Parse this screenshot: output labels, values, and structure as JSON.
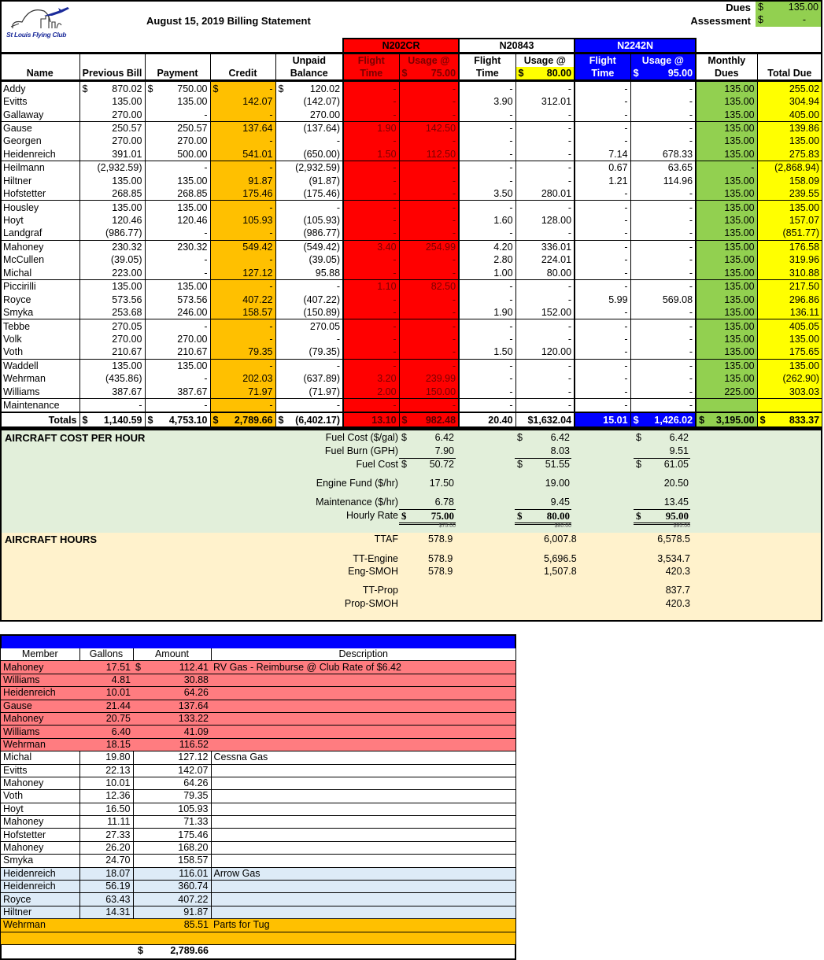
{
  "header": {
    "logo_text": "St Louis Flying Club",
    "title": "August 15, 2019 Billing Statement",
    "dues_label": "Dues",
    "dues_value": "135.00",
    "assessment_label": "Assessment",
    "assessment_value": "-",
    "currency": "$"
  },
  "aircraft": [
    {
      "tail": "N202CR",
      "flight_label": "Flight Time",
      "usage_label": "Usage @",
      "rate": "75.00",
      "color": "#ff0000"
    },
    {
      "tail": "N20843",
      "flight_label": "Flight Time",
      "usage_label": "Usage @",
      "rate": "80.00",
      "color": "#ffffff"
    },
    {
      "tail": "N2242N",
      "flight_label": "Flight Time",
      "usage_label": "Usage @",
      "rate": "95.00",
      "color": "#0000ff"
    }
  ],
  "columns": {
    "name": "Name",
    "previous_bill": "Previous Bill",
    "payment": "Payment",
    "credit": "Credit",
    "unpaid_balance": "Unpaid Balance",
    "monthly_dues": "Monthly Dues",
    "total_due": "Total Due"
  },
  "rows": [
    [
      "Addy",
      "$ 870.02",
      "$ 750.00",
      "$ -",
      "$ 120.02",
      "-",
      "-",
      "-",
      "-",
      "-",
      "-",
      "135.00",
      "255.02"
    ],
    [
      "Evitts",
      "135.00",
      "135.00",
      "142.07",
      "(142.07)",
      "-",
      "-",
      "3.90",
      "312.01",
      "-",
      "-",
      "135.00",
      "304.94"
    ],
    [
      "Gallaway",
      "270.00",
      "-",
      "-",
      "270.00",
      "-",
      "-",
      "-",
      "-",
      "-",
      "-",
      "135.00",
      "405.00"
    ],
    [
      "Gause",
      "250.57",
      "250.57",
      "137.64",
      "(137.64)",
      "1.90",
      "142.50",
      "-",
      "-",
      "-",
      "-",
      "135.00",
      "139.86"
    ],
    [
      "Georgen",
      "270.00",
      "270.00",
      "-",
      "-",
      "-",
      "-",
      "-",
      "-",
      "-",
      "-",
      "135.00",
      "135.00"
    ],
    [
      "Heidenreich",
      "391.01",
      "500.00",
      "541.01",
      "(650.00)",
      "1.50",
      "112.50",
      "-",
      "-",
      "7.14",
      "678.33",
      "135.00",
      "275.83"
    ],
    [
      "Heilmann",
      "(2,932.59)",
      "-",
      "-",
      "(2,932.59)",
      "-",
      "-",
      "-",
      "-",
      "0.67",
      "63.65",
      "-",
      "(2,868.94)"
    ],
    [
      "Hiltner",
      "135.00",
      "135.00",
      "91.87",
      "(91.87)",
      "-",
      "-",
      "-",
      "-",
      "1.21",
      "114.96",
      "135.00",
      "158.09"
    ],
    [
      "Hofstetter",
      "268.85",
      "268.85",
      "175.46",
      "(175.46)",
      "-",
      "-",
      "3.50",
      "280.01",
      "-",
      "-",
      "135.00",
      "239.55"
    ],
    [
      "Housley",
      "135.00",
      "135.00",
      "-",
      "-",
      "-",
      "-",
      "-",
      "-",
      "-",
      "-",
      "135.00",
      "135.00"
    ],
    [
      "Hoyt",
      "120.46",
      "120.46",
      "105.93",
      "(105.93)",
      "-",
      "-",
      "1.60",
      "128.00",
      "-",
      "-",
      "135.00",
      "157.07"
    ],
    [
      "Landgraf",
      "(986.77)",
      "-",
      "-",
      "(986.77)",
      "-",
      "-",
      "-",
      "-",
      "-",
      "-",
      "135.00",
      "(851.77)"
    ],
    [
      "Mahoney",
      "230.32",
      "230.32",
      "549.42",
      "(549.42)",
      "3.40",
      "254.99",
      "4.20",
      "336.01",
      "-",
      "-",
      "135.00",
      "176.58"
    ],
    [
      "McCullen",
      "(39.05)",
      "-",
      "-",
      "(39.05)",
      "-",
      "-",
      "2.80",
      "224.01",
      "-",
      "-",
      "135.00",
      "319.96"
    ],
    [
      "Michal",
      "223.00",
      "-",
      "127.12",
      "95.88",
      "-",
      "-",
      "1.00",
      "80.00",
      "-",
      "-",
      "135.00",
      "310.88"
    ],
    [
      "Piccirilli",
      "135.00",
      "135.00",
      "-",
      "-",
      "1.10",
      "82.50",
      "-",
      "-",
      "-",
      "-",
      "135.00",
      "217.50"
    ],
    [
      "Royce",
      "573.56",
      "573.56",
      "407.22",
      "(407.22)",
      "-",
      "-",
      "-",
      "-",
      "5.99",
      "569.08",
      "135.00",
      "296.86"
    ],
    [
      "Smyka",
      "253.68",
      "246.00",
      "158.57",
      "(150.89)",
      "-",
      "-",
      "1.90",
      "152.00",
      "-",
      "-",
      "135.00",
      "136.11"
    ],
    [
      "Tebbe",
      "270.05",
      "-",
      "-",
      "270.05",
      "-",
      "-",
      "-",
      "-",
      "-",
      "-",
      "135.00",
      "405.05"
    ],
    [
      "Volk",
      "270.00",
      "270.00",
      "-",
      "-",
      "-",
      "-",
      "-",
      "-",
      "-",
      "-",
      "135.00",
      "135.00"
    ],
    [
      "Voth",
      "210.67",
      "210.67",
      "79.35",
      "(79.35)",
      "-",
      "-",
      "1.50",
      "120.00",
      "-",
      "-",
      "135.00",
      "175.65"
    ],
    [
      "Waddell",
      "135.00",
      "135.00",
      "-",
      "-",
      "-",
      "-",
      "-",
      "-",
      "-",
      "-",
      "135.00",
      "135.00"
    ],
    [
      "Wehrman",
      "(435.86)",
      "-",
      "202.03",
      "(637.89)",
      "3.20",
      "239.99",
      "-",
      "-",
      "-",
      "-",
      "135.00",
      "(262.90)"
    ],
    [
      "Williams",
      "387.67",
      "387.67",
      "71.97",
      "(71.97)",
      "2.00",
      "150.00",
      "-",
      "-",
      "-",
      "-",
      "225.00",
      "303.03"
    ],
    [
      "Maintenance",
      "-",
      "-",
      "-",
      "-",
      "-",
      "-",
      "-",
      "-",
      "-",
      "-",
      "",
      ""
    ]
  ],
  "totals": [
    "Totals",
    "$ 1,140.59",
    "$ 4,753.10",
    "$ 2,789.66",
    "$ (6,402.17)",
    "13.10",
    "$ 982.48",
    "20.40",
    "$1,632.04",
    "15.01",
    "$ 1,426.02",
    "$ 3,195.00",
    "$ 833.37"
  ],
  "cost": {
    "title": "AIRCRAFT COST PER HOUR",
    "rows": [
      {
        "label": "Fuel Cost ($/gal)",
        "values": [
          {
            "cur": "$",
            "v": "6.42"
          },
          {
            "cur": "$",
            "v": "6.42"
          },
          {
            "cur": "$",
            "v": "6.42"
          }
        ]
      },
      {
        "label": "Fuel Burn (GPH)",
        "values": [
          {
            "cur": "",
            "v": "7.90"
          },
          {
            "cur": "",
            "v": "8.03"
          },
          {
            "cur": "",
            "v": "9.51"
          }
        ]
      },
      {
        "label": "Fuel Cost",
        "values": [
          {
            "cur": "$",
            "v": "50.72"
          },
          {
            "cur": "$",
            "v": "51.55"
          },
          {
            "cur": "$",
            "v": "61.05"
          }
        ]
      },
      {
        "label": "Engine Fund ($/hr)",
        "values": [
          {
            "cur": "",
            "v": "17.50"
          },
          {
            "cur": "",
            "v": "19.00"
          },
          {
            "cur": "",
            "v": "20.50"
          }
        ]
      },
      {
        "label": "Maintenance ($/hr)",
        "values": [
          {
            "cur": "",
            "v": "6.78"
          },
          {
            "cur": "",
            "v": "9.45"
          },
          {
            "cur": "",
            "v": "13.45"
          }
        ]
      },
      {
        "label": "Hourly Rate",
        "values": [
          {
            "cur": "$",
            "v": "75.00"
          },
          {
            "cur": "$",
            "v": "80.00"
          },
          {
            "cur": "$",
            "v": "95.00"
          }
        ]
      },
      {
        "label": "",
        "values": [
          {
            "cur": "",
            "v": "$75.00"
          },
          {
            "cur": "",
            "v": "$80.00"
          },
          {
            "cur": "",
            "v": "$95.00"
          }
        ]
      }
    ]
  },
  "hours": {
    "title": "AIRCRAFT HOURS",
    "rows": [
      {
        "label": "TTAF",
        "values": [
          "578.9",
          "6,007.8",
          "6,578.5"
        ]
      },
      {
        "label": "TT-Engine",
        "values": [
          "578.9",
          "5,696.5",
          "3,534.7"
        ]
      },
      {
        "label": "Eng-SMOH",
        "values": [
          "578.9",
          "1,507.8",
          "420.3"
        ]
      },
      {
        "label": "TT-Prop",
        "values": [
          "",
          "",
          "837.7"
        ]
      },
      {
        "label": "Prop-SMOH",
        "values": [
          "",
          "",
          "420.3"
        ]
      }
    ]
  },
  "fuel": {
    "columns": [
      "Member",
      "Gallons",
      "Amount",
      "Description"
    ],
    "rows": [
      {
        "member": "Mahoney",
        "gallons": "17.51",
        "amount": "$ 112.41",
        "desc": "RV Gas - Reimburse @ Club Rate of $6.42",
        "color": "#ff7c80"
      },
      {
        "member": "Williams",
        "gallons": "4.81",
        "amount": "30.88",
        "desc": "",
        "color": "#ff7c80"
      },
      {
        "member": "Heidenreich",
        "gallons": "10.01",
        "amount": "64.26",
        "desc": "",
        "color": "#ff7c80"
      },
      {
        "member": "Gause",
        "gallons": "21.44",
        "amount": "137.64",
        "desc": "",
        "color": "#ff7c80"
      },
      {
        "member": "Mahoney",
        "gallons": "20.75",
        "amount": "133.22",
        "desc": "",
        "color": "#ff7c80"
      },
      {
        "member": "Williams",
        "gallons": "6.40",
        "amount": "41.09",
        "desc": "",
        "color": "#ff7c80"
      },
      {
        "member": "Wehrman",
        "gallons": "18.15",
        "amount": "116.52",
        "desc": "",
        "color": "#ff7c80"
      },
      {
        "member": "Michal",
        "gallons": "19.80",
        "amount": "127.12",
        "desc": "Cessna Gas",
        "color": "#ffffff"
      },
      {
        "member": "Evitts",
        "gallons": "22.13",
        "amount": "142.07",
        "desc": "",
        "color": "#ffffff"
      },
      {
        "member": "Mahoney",
        "gallons": "10.01",
        "amount": "64.26",
        "desc": "",
        "color": "#ffffff"
      },
      {
        "member": "Voth",
        "gallons": "12.36",
        "amount": "79.35",
        "desc": "",
        "color": "#ffffff"
      },
      {
        "member": "Hoyt",
        "gallons": "16.50",
        "amount": "105.93",
        "desc": "",
        "color": "#ffffff"
      },
      {
        "member": "Mahoney",
        "gallons": "11.11",
        "amount": "71.33",
        "desc": "",
        "color": "#ffffff"
      },
      {
        "member": "Hofstetter",
        "gallons": "27.33",
        "amount": "175.46",
        "desc": "",
        "color": "#ffffff"
      },
      {
        "member": "Mahoney",
        "gallons": "26.20",
        "amount": "168.20",
        "desc": "",
        "color": "#ffffff"
      },
      {
        "member": "Smyka",
        "gallons": "24.70",
        "amount": "158.57",
        "desc": "",
        "color": "#ffffff"
      },
      {
        "member": "Heidenreich",
        "gallons": "18.07",
        "amount": "116.01",
        "desc": "Arrow Gas",
        "color": "#ddebf7"
      },
      {
        "member": "Heidenreich",
        "gallons": "56.19",
        "amount": "360.74",
        "desc": "",
        "color": "#ddebf7"
      },
      {
        "member": "Royce",
        "gallons": "63.43",
        "amount": "407.22",
        "desc": "",
        "color": "#ddebf7"
      },
      {
        "member": "Hiltner",
        "gallons": "14.31",
        "amount": "91.87",
        "desc": "",
        "color": "#ddebf7"
      },
      {
        "member": "Wehrman",
        "gallons": "",
        "amount": "85.51",
        "desc": "Parts for Tug",
        "color": "#ffc000"
      },
      {
        "member": "",
        "gallons": "",
        "amount": "",
        "desc": "",
        "color": "#ffc000"
      }
    ],
    "total": "$ 2,789.66"
  }
}
